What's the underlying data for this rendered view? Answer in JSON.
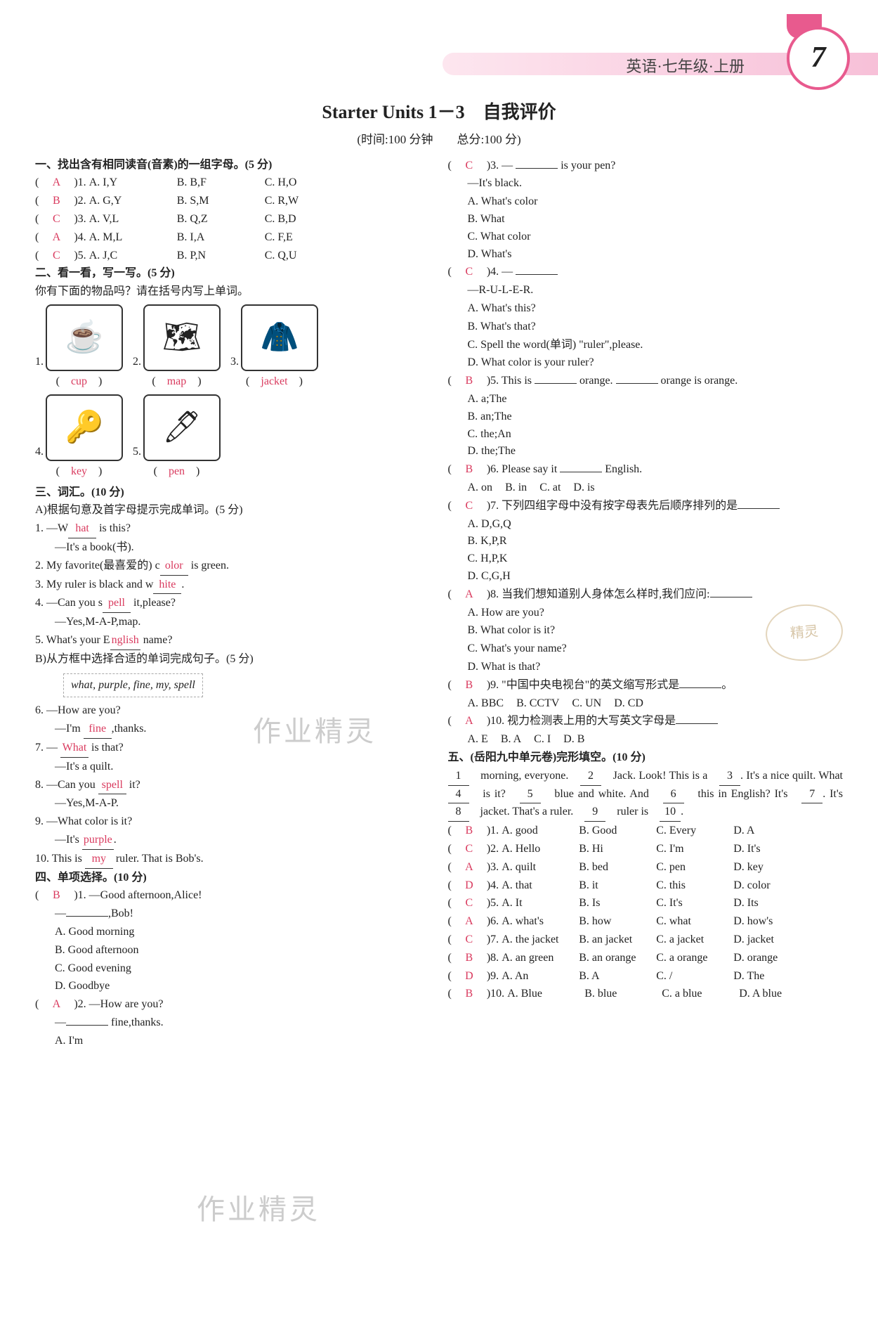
{
  "header": {
    "subject": "英语·七年级·上册",
    "page": "7"
  },
  "title": "Starter Units 1－3　自我评价",
  "subtitle": "(时间:100 分钟　　总分:100 分)",
  "s1": {
    "head": "一、找出含有相同读音(音素)的一组字母。(5 分)",
    "items": [
      {
        "ans": "A",
        "a": "A. I,Y",
        "b": "B. B,F",
        "c": "C. H,O"
      },
      {
        "ans": "B",
        "a": "A. G,Y",
        "b": "B. S,M",
        "c": "C. R,W"
      },
      {
        "ans": "C",
        "a": "A. V,L",
        "b": "B. Q,Z",
        "c": "C. B,D"
      },
      {
        "ans": "A",
        "a": "A. M,L",
        "b": "B. I,A",
        "c": "C. F,E"
      },
      {
        "ans": "C",
        "a": "A. J,C",
        "b": "B. P,N",
        "c": "C. Q,U"
      }
    ]
  },
  "s2": {
    "head": "二、看一看，写一写。(5 分)",
    "sub": "你有下面的物品吗？请在括号内写上单词。",
    "items": [
      {
        "n": "1.",
        "glyph": "☕",
        "ans": "cup"
      },
      {
        "n": "2.",
        "glyph": "🗺",
        "ans": "map"
      },
      {
        "n": "3.",
        "glyph": "🧥",
        "ans": "jacket"
      },
      {
        "n": "4.",
        "glyph": "🔑",
        "ans": "key"
      },
      {
        "n": "5.",
        "glyph": "🖊",
        "ans": "pen"
      }
    ]
  },
  "s3": {
    "head": "三、词汇。(10 分)",
    "a_head": "A)根据句意及首字母提示完成单词。(5 分)",
    "a": [
      {
        "l1": "1. —W",
        "ans": "hat",
        "l2": " is this?",
        "cont": "—It's a book(书)."
      },
      {
        "l1": "2. My favorite(最喜爱的) c",
        "ans": "olor",
        "l2": " is green."
      },
      {
        "l1": "3. My ruler is black and w",
        "ans": "hite",
        "l2": "."
      },
      {
        "l1": "4. —Can you s",
        "ans": "pell",
        "l2": " it,please?",
        "cont": "—Yes,M-A-P,map."
      },
      {
        "l1": "5. What's your E",
        "ans": "nglish",
        "l2": " name?"
      }
    ],
    "b_head": "B)从方框中选择合适的单词完成句子。(5 分)",
    "box": "what, purple, fine, my, spell",
    "b": [
      {
        "q": "6. —How are you?",
        "cont": "—I'm ",
        "ans": "fine",
        "tail": ",thanks."
      },
      {
        "q": "7. — ",
        "ans": "What",
        "tail": " is that?",
        "cont": "—It's a quilt."
      },
      {
        "q": "8. —Can you ",
        "ans": "spell",
        "tail": " it?",
        "cont": "—Yes,M-A-P."
      },
      {
        "q": "9. —What color is it?",
        "cont": "—It's ",
        "ans": "purple",
        "tail": "."
      },
      {
        "q": "10. This is ",
        "ans": "my",
        "tail": " ruler. That is Bob's."
      }
    ]
  },
  "s4": {
    "head": "四、单项选择。(10 分)",
    "qs": [
      {
        "ans": "B",
        "n": "1.",
        "stem": "—Good afternoon,Alice!",
        "stem2": "—________,Bob!",
        "opts": [
          "A. Good morning",
          "B. Good afternoon",
          "C. Good evening",
          "D. Goodbye"
        ]
      },
      {
        "ans": "A",
        "n": "2.",
        "stem": "—How are you?",
        "stem2": "—________ fine,thanks.",
        "opts": [
          "A. I'm"
        ]
      },
      {
        "ans": "C",
        "n": "3.",
        "stem": "— ________ is your pen?",
        "stem2": "—It's black.",
        "opts": [
          "A. What's color",
          "B. What",
          "C. What color",
          "D. What's"
        ]
      },
      {
        "ans": "C",
        "n": "4.",
        "stem": "— ________",
        "stem2": "—R-U-L-E-R.",
        "opts": [
          "A. What's this?",
          "B. What's that?",
          "C. Spell the word(单词) \"ruler\",please.",
          "D. What color is your ruler?"
        ]
      },
      {
        "ans": "B",
        "n": "5.",
        "stem": "This is ________ orange. ________ orange is orange.",
        "opts": [
          "A. a;The",
          "B. an;The",
          "C. the;An",
          "D. the;The"
        ]
      },
      {
        "ans": "B",
        "n": "6.",
        "stem": "Please say it ________ English.",
        "opts": [
          "A. on",
          "B. in",
          "C. at",
          "D. is"
        ]
      },
      {
        "ans": "C",
        "n": "7.",
        "stem": "下列四组字母中没有按字母表先后顺序排列的是________",
        "opts": [
          "A. D,G,Q",
          "B. K,P,R",
          "C. H,P,K",
          "D. C,G,H"
        ]
      },
      {
        "ans": "A",
        "n": "8.",
        "stem": "当我们想知道别人身体怎么样时,我们应问:________",
        "opts": [
          "A. How are you?",
          "B. What color is it?",
          "C. What's your name?",
          "D. What is that?"
        ]
      },
      {
        "ans": "B",
        "n": "9.",
        "stem": "\"中国中央电视台\"的英文缩写形式是________。",
        "opts": [
          "A. BBC",
          "B. CCTV",
          "C. UN",
          "D. CD"
        ]
      },
      {
        "ans": "A",
        "n": "10.",
        "stem": "视力检测表上用的大写英文字母是________",
        "opts": [
          "A. E",
          "B. A",
          "C. I",
          "D. B"
        ]
      }
    ]
  },
  "s5": {
    "head": "五、(岳阳九中单元卷)完形填空。(10 分)",
    "passage_parts": [
      "",
      "　morning, everyone.　",
      "　Jack. Look! This is a　",
      ". It's a nice quilt. What　",
      "　is it?　",
      "　blue and white. And　",
      "　this in English? It's　",
      ". It's　",
      "　jacket. That's a ruler.　",
      "　ruler is　",
      "."
    ],
    "qs": [
      {
        "ans": "B",
        "n": "1.",
        "opts": [
          "A. good",
          "B. Good",
          "C. Every",
          "D. A"
        ]
      },
      {
        "ans": "C",
        "n": "2.",
        "opts": [
          "A. Hello",
          "B. Hi",
          "C. I'm",
          "D. It's"
        ]
      },
      {
        "ans": "A",
        "n": "3.",
        "opts": [
          "A. quilt",
          "B. bed",
          "C. pen",
          "D. key"
        ]
      },
      {
        "ans": "D",
        "n": "4.",
        "opts": [
          "A. that",
          "B. it",
          "C. this",
          "D. color"
        ]
      },
      {
        "ans": "C",
        "n": "5.",
        "opts": [
          "A. It",
          "B. Is",
          "C. It's",
          "D. Its"
        ]
      },
      {
        "ans": "A",
        "n": "6.",
        "opts": [
          "A. what's",
          "B. how",
          "C. what",
          "D. how's"
        ]
      },
      {
        "ans": "C",
        "n": "7.",
        "opts": [
          "A. the jacket",
          "B. an jacket",
          "C. a jacket",
          "D. jacket"
        ]
      },
      {
        "ans": "B",
        "n": "8.",
        "opts": [
          "A. an green",
          "B. an orange",
          "C. a orange",
          "D. orange"
        ]
      },
      {
        "ans": "D",
        "n": "9.",
        "opts": [
          "A. An",
          "B. A",
          "C. /",
          "D. The"
        ]
      },
      {
        "ans": "B",
        "n": "10.",
        "opts": [
          "A. Blue",
          "B. blue",
          "C. a blue",
          "D. A blue"
        ]
      }
    ]
  },
  "watermarks": [
    "作业精灵",
    "作业精灵",
    "精灵"
  ]
}
